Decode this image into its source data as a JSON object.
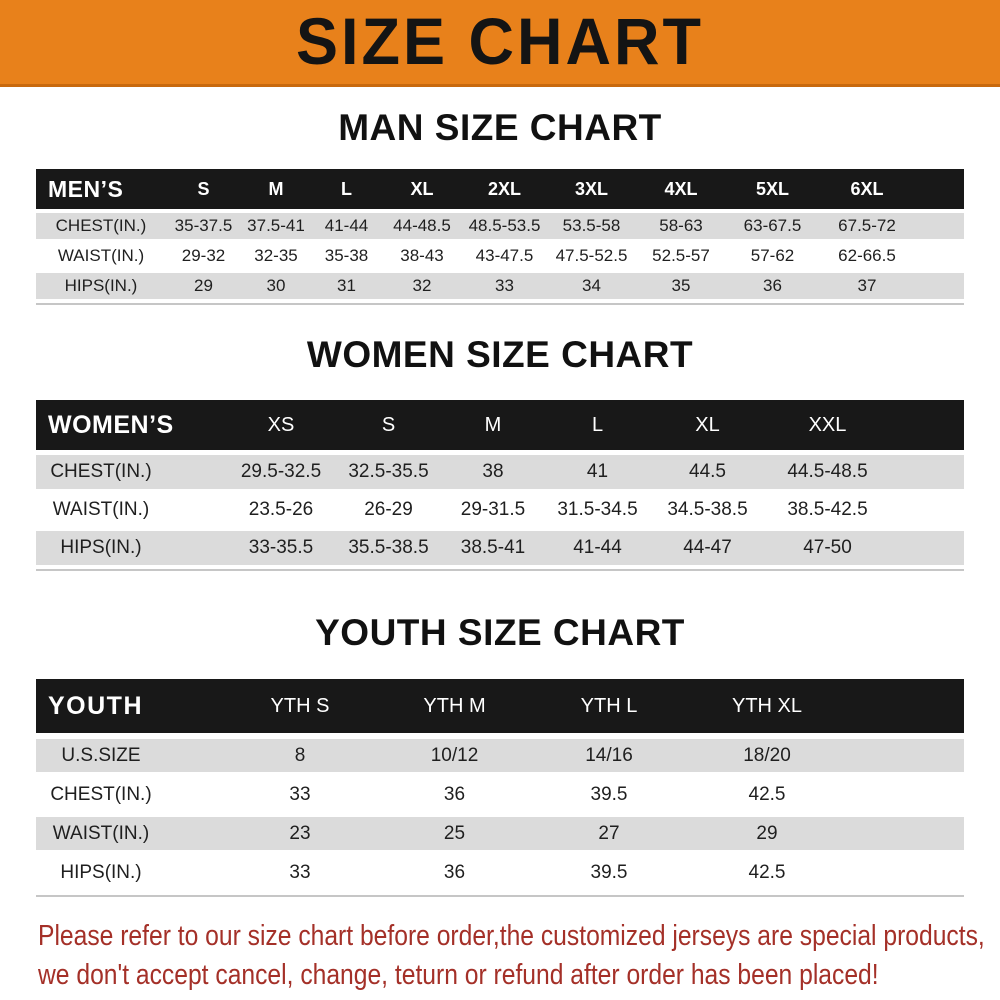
{
  "banner": {
    "title": "SIZE CHART"
  },
  "colors": {
    "banner_bg": "#E8811B",
    "banner_border": "#C8690E",
    "header_bar_bg": "#181818",
    "header_bar_text": "#FFFFFF",
    "alt_row_bg": "#DBDBDB",
    "footer_text": "#A43028"
  },
  "sections": {
    "men": {
      "title": "MAN SIZE CHART",
      "corner_label": "MEN’S",
      "columns": [
        "S",
        "M",
        "L",
        "XL",
        "2XL",
        "3XL",
        "4XL",
        "5XL",
        "6XL"
      ],
      "rows": [
        {
          "label": "CHEST(IN.)",
          "values": [
            "35-37.5",
            "37.5-41",
            "41-44",
            "44-48.5",
            "48.5-53.5",
            "53.5-58",
            "58-63",
            "63-67.5",
            "67.5-72"
          ]
        },
        {
          "label": "WAIST(IN.)",
          "values": [
            "29-32",
            "32-35",
            "35-38",
            "38-43",
            "43-47.5",
            "47.5-52.5",
            "52.5-57",
            "57-62",
            "62-66.5"
          ]
        },
        {
          "label": "HIPS(IN.)",
          "values": [
            "29",
            "30",
            "31",
            "32",
            "33",
            "34",
            "35",
            "36",
            "37"
          ]
        }
      ]
    },
    "women": {
      "title": "WOMEN SIZE CHART",
      "corner_label": "WOMEN’S",
      "columns": [
        "XS",
        "S",
        "M",
        "L",
        "XL",
        "XXL"
      ],
      "rows": [
        {
          "label": "CHEST(IN.)",
          "values": [
            "29.5-32.5",
            "32.5-35.5",
            "38",
            "41",
            "44.5",
            "44.5-48.5"
          ]
        },
        {
          "label": "WAIST(IN.)",
          "values": [
            "23.5-26",
            "26-29",
            "29-31.5",
            "31.5-34.5",
            "34.5-38.5",
            "38.5-42.5"
          ]
        },
        {
          "label": "HIPS(IN.)",
          "values": [
            "33-35.5",
            "35.5-38.5",
            "38.5-41",
            "41-44",
            "44-47",
            "47-50"
          ]
        }
      ]
    },
    "youth": {
      "title": "YOUTH SIZE CHART",
      "corner_label": "YOUTH",
      "columns": [
        "YTH S",
        "YTH M",
        "YTH L",
        "YTH XL"
      ],
      "rows": [
        {
          "label": "U.S.SIZE",
          "values": [
            "8",
            "10/12",
            "14/16",
            "18/20"
          ]
        },
        {
          "label": "CHEST(IN.)",
          "values": [
            "33",
            "36",
            "39.5",
            "42.5"
          ]
        },
        {
          "label": "WAIST(IN.)",
          "values": [
            "23",
            "25",
            "27",
            "29"
          ]
        },
        {
          "label": "HIPS(IN.)",
          "values": [
            "33",
            "36",
            "39.5",
            "42.5"
          ]
        }
      ]
    }
  },
  "footer": {
    "line1": "Please refer to our size chart before order,the customized jerseys are special products,",
    "line2": "we don't accept cancel, change, teturn or refund after order has been placed!"
  }
}
